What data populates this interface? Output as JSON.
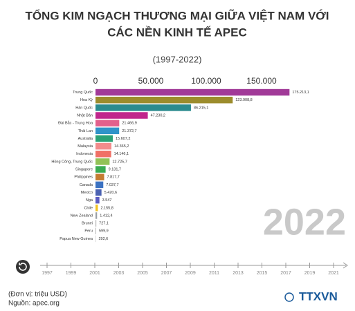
{
  "chart_data": {
    "type": "bar",
    "orientation": "horizontal",
    "title": [
      "TỔNG KIM NGẠCH THƯƠNG MẠI GIỮA VIỆT NAM VỚI",
      "CÁC NỀN KINH TẾ APEC"
    ],
    "subtitle": "(1997-2022)",
    "categories": [
      "Trung Quốc",
      "Hoa Kỳ",
      "Hàn Quốc",
      "Nhật Bản",
      "Đài Bắc - Trung Hoa",
      "Thái Lan",
      "Australia",
      "Malaysia",
      "Indonesia",
      "Hồng Công, Trung Quốc",
      "Singapore",
      "Philippines",
      "Canada",
      "Mexico",
      "Nga",
      "Chile",
      "New Zealand",
      "Brunei",
      "Peru",
      "Papua New Guinea"
    ],
    "values": [
      175213.1,
      123908.8,
      86215.1,
      47230.2,
      21466.9,
      21372.7,
      15607.2,
      14365.2,
      14146.1,
      12725.7,
      9131.7,
      7817.7,
      7037.7,
      5420.6,
      3547,
      2155.8,
      1412.4,
      727.1,
      599.9,
      292.6
    ],
    "value_labels": [
      "175.213,1",
      "123.908,8",
      "86.215,1",
      "47.230,2",
      "21.466,9",
      "21.372,7",
      "15.607,2",
      "14.365,2",
      "14.146,1",
      "12.725,7",
      "9.131,7",
      "7.817,7",
      "7.037,7",
      "5.420,6",
      "3.547",
      "2.155,8",
      "1.412,4",
      "727,1",
      "599,9",
      "292,6"
    ],
    "colors": [
      "#a13a98",
      "#9c8c2c",
      "#2b8b8e",
      "#c0268c",
      "#e2608c",
      "#2f93c9",
      "#2aa276",
      "#f28c8c",
      "#f07066",
      "#92c256",
      "#3aab52",
      "#c47c32",
      "#3b72c2",
      "#4b62b2",
      "#5b5cc2",
      "#f2c222",
      "#9aa0a6",
      "#b0b0b0",
      "#b0b0b0",
      "#b0b0b0"
    ],
    "xlim": [
      0,
      180000
    ],
    "xticks": [
      0,
      {
        "value": 50000,
        "label": "50.000"
      },
      {
        "value": 100000,
        "label": "100.000"
      },
      {
        "value": 150000,
        "label": "150.000"
      }
    ],
    "current_year": "2022",
    "timeline_ticks": [
      1997,
      1999,
      2001,
      2003,
      2005,
      2007,
      2009,
      2011,
      2013,
      2015,
      2017,
      2019,
      2021
    ],
    "timeline_lim": [
      1997,
      2021
    ],
    "unit_note": "(Đơn vị: triệu USD)",
    "source": "Nguồn: apec.org",
    "logo": "TTXVN"
  }
}
